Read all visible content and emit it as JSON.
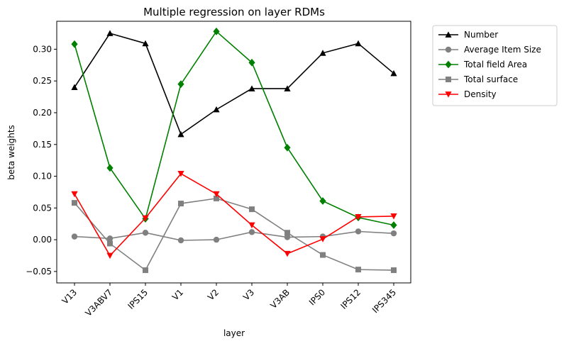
{
  "chart_data": {
    "type": "line",
    "title": "Multiple regression on layer RDMs",
    "xlabel": "layer",
    "ylabel": "beta weights",
    "categories": [
      "V13",
      "V3ABV7",
      "IPS15",
      "V1",
      "V2",
      "V3",
      "V3AB",
      "IPS0",
      "IPS12",
      "IPS345"
    ],
    "ylim": [
      -0.068,
      0.344
    ],
    "yticks": [
      -0.05,
      0.0,
      0.05,
      0.1,
      0.15,
      0.2,
      0.25,
      0.3
    ],
    "ytick_labels": [
      "−0.05",
      "0.00",
      "0.05",
      "0.10",
      "0.15",
      "0.20",
      "0.25",
      "0.30"
    ],
    "grid": false,
    "legend_placement": "outside-right-top",
    "series": [
      {
        "name": "Number",
        "color": "#000000",
        "marker": "triangle-up",
        "values": [
          0.24,
          0.325,
          0.309,
          0.166,
          0.205,
          0.238,
          0.238,
          0.294,
          0.309,
          0.262
        ]
      },
      {
        "name": "Average Item Size",
        "color": "#808080",
        "marker": "circle",
        "values": [
          0.005,
          0.002,
          0.011,
          -0.001,
          0.0,
          0.012,
          0.004,
          0.005,
          0.013,
          0.01
        ]
      },
      {
        "name": "Total field Area",
        "color": "#008000",
        "marker": "diamond",
        "values": [
          0.308,
          0.113,
          0.033,
          0.245,
          0.328,
          0.279,
          0.145,
          0.061,
          0.035,
          0.023
        ]
      },
      {
        "name": "Total surface",
        "color": "#808080",
        "marker": "square",
        "values": [
          0.058,
          -0.006,
          -0.048,
          0.057,
          0.065,
          0.048,
          0.011,
          -0.024,
          -0.047,
          -0.048
        ]
      },
      {
        "name": "Density",
        "color": "#ff0000",
        "marker": "triangle-down",
        "values": [
          0.072,
          -0.025,
          0.034,
          0.104,
          0.072,
          0.023,
          -0.022,
          0.001,
          0.036,
          0.037
        ]
      }
    ]
  }
}
